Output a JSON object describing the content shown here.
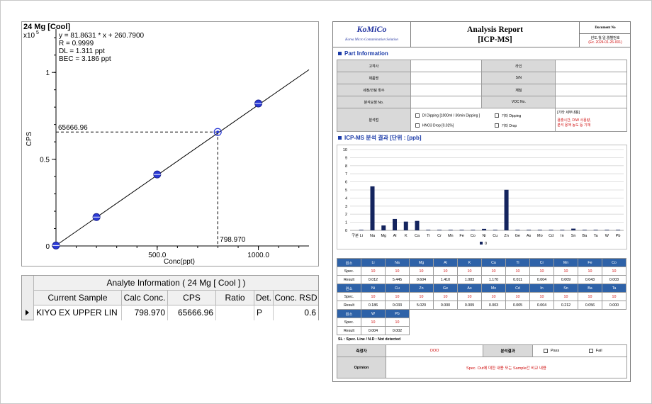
{
  "calibration": {
    "title": "24 Mg [Cool]",
    "y_scale_label": "x10",
    "y_scale_exp": "5",
    "equation": "y = 81.8631 * x  + 260.7900",
    "r": "R =  0.9999",
    "dl": "DL = 1.311 ppt",
    "bec": "BEC = 3.186 ppt",
    "x_label": "Conc(ppt)",
    "y_label": "CPS",
    "x_ticks": [
      "500.0",
      "1000.0"
    ],
    "y_ticks": [
      "0",
      "0.5",
      "1"
    ],
    "marked_x_label": "798.970",
    "marked_y_label": "65666.96",
    "chart_data": {
      "type": "scatter",
      "title": "24 Mg [Cool]",
      "xlabel": "Conc(ppt)",
      "ylabel": "CPS",
      "y_multiplier": "x10^5",
      "xlim": [
        0,
        1250
      ],
      "ylim": [
        0,
        1.25
      ],
      "x_ticks": [
        500,
        1000
      ],
      "y_ticks": [
        0,
        0.5,
        1
      ],
      "fit": {
        "slope": 81.8631,
        "intercept": 260.79
      },
      "points": [
        {
          "x": 0,
          "y": 0.0026
        },
        {
          "x": 200,
          "y": 0.1663
        },
        {
          "x": 500,
          "y": 0.4119
        },
        {
          "x": 1000,
          "y": 0.8212
        }
      ],
      "sample": {
        "x": 798.97,
        "y": 0.65667
      }
    }
  },
  "analyte_table": {
    "title": "Analyte Information ( 24  Mg  [ Cool ] )",
    "columns": [
      "Current Sample",
      "Calc Conc.",
      "CPS",
      "Ratio",
      "Det.",
      "Conc. RSD"
    ],
    "row": [
      "KIYO EX UPPER LIN",
      "798.970",
      "65666.96",
      "",
      "P",
      "0.6"
    ]
  },
  "report": {
    "logo": "KoMiCo",
    "logo_sub": "Korea Micro Contamination Solution",
    "title_line1": "Analysis Report",
    "title_line2": "[ICP-MS]",
    "doc_no_label": "Document No",
    "doc_date_label": "년도.월.일.월별번호",
    "doc_date_example": "(Ex. 2024-01-26-001)",
    "part_info_head": "Part Information",
    "fields": {
      "customer": "고객사",
      "line": "라인",
      "product": "제품명",
      "sn": "S/N",
      "clean_count": "세정/코팅 횟수",
      "material": "재질",
      "request_no": "분석요청 No.",
      "voc_no": "VOC No.",
      "method": "분석법"
    },
    "method_options": [
      "DI Dipping [1000ml / 30min Dipping ]",
      "기타 Dipping",
      "HNO3 Drop [0.02%]",
      "기타 Drop"
    ],
    "other_details_label": "[기타 세부내용]",
    "other_details_text": "용출시간, DIW 사용량,\n분석 용액 농도 등 기재",
    "results_head": "ICP-MS 분석 결과 [단위 : [ppb]",
    "bar_legend": "0",
    "bar_axis_label": "구분",
    "chart_data": {
      "type": "bar",
      "categories": [
        "Li",
        "Na",
        "Mg",
        "Al",
        "K",
        "Ca",
        "Ti",
        "Cr",
        "Mn",
        "Fe",
        "Co",
        "Ni",
        "Cu",
        "Zn",
        "Ge",
        "As",
        "Mo",
        "Cd",
        "In",
        "Sn",
        "Ba",
        "Ta",
        "W",
        "Pb"
      ],
      "series": [
        {
          "name": "0",
          "values": [
            0.012,
            5.445,
            0.604,
            1.41,
            1.083,
            1.17,
            0.011,
            0.004,
            0.009,
            0.043,
            0.003,
            0.186,
            0.033,
            5.02,
            0.0,
            0.009,
            0.003,
            0.005,
            0.004,
            0.212,
            0.056,
            0.0,
            0.004,
            0.002
          ]
        }
      ],
      "ylim": [
        0,
        10
      ],
      "y_ticks": [
        0,
        1,
        2,
        3,
        4,
        5,
        6,
        7,
        8,
        9,
        10
      ]
    },
    "result_rows": [
      {
        "elements": [
          "Li",
          "Na",
          "Mg",
          "Al",
          "K",
          "Ca",
          "Ti",
          "Cr",
          "Mn",
          "Fe",
          "Co"
        ],
        "spec": [
          "10",
          "10",
          "10",
          "10",
          "10",
          "10",
          "10",
          "10",
          "10",
          "10",
          "10"
        ],
        "result": [
          "0.012",
          "5.445",
          "0.604",
          "1.410",
          "1.083",
          "1.170",
          "0.011",
          "0.004",
          "0.009",
          "0.043",
          "0.003"
        ]
      },
      {
        "elements": [
          "Ni",
          "Cu",
          "Zn",
          "Ge",
          "As",
          "Mo",
          "Cd",
          "In",
          "Sn",
          "Ba",
          "Ta"
        ],
        "spec": [
          "10",
          "10",
          "10",
          "10",
          "10",
          "10",
          "10",
          "10",
          "10",
          "10",
          "10"
        ],
        "result": [
          "0.186",
          "0.033",
          "5.020",
          "0.000",
          "0.009",
          "0.003",
          "0.005",
          "0.004",
          "0.212",
          "0.056",
          "0.000"
        ]
      },
      {
        "elements": [
          "W",
          "Pb"
        ],
        "spec": [
          "10",
          "10"
        ],
        "result": [
          "0.004",
          "0.002"
        ]
      }
    ],
    "row_labels": {
      "element": "원소",
      "spec": "Spec.",
      "result": "Result"
    },
    "footnote": "SL : Spec. Line / N.D : Not detected",
    "analyst_label": "측정자",
    "analyst_value": "OOO",
    "analysis_result_label": "분석결과",
    "pass_label": "Pass",
    "fail_label": "Fail",
    "opinion_label": "Opinion",
    "opinion_text": "Spec. Out에 대한 내용 또는 Sample간 비교 내용"
  }
}
